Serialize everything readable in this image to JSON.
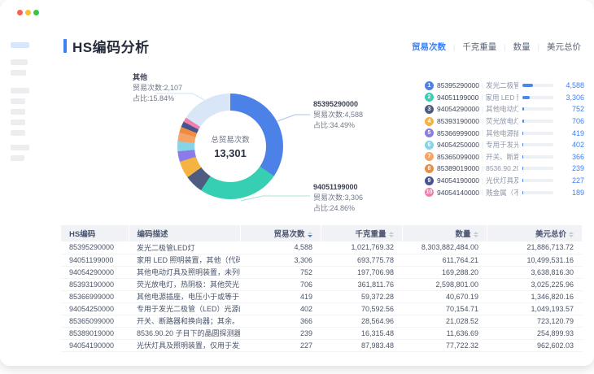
{
  "window": {
    "traffic_lights": [
      "#f95f57",
      "#fbbd2e",
      "#31c748"
    ]
  },
  "header": {
    "title": "HS编码分析",
    "tabs": [
      {
        "label": "贸易次数",
        "active": true
      },
      {
        "label": "千克重量",
        "active": false
      },
      {
        "label": "数量",
        "active": false
      },
      {
        "label": "美元总价",
        "active": false
      }
    ]
  },
  "chart": {
    "center_label": "总贸易次数",
    "center_value": "13,301",
    "callouts": [
      {
        "title": "其他",
        "lines": [
          "贸易次数:2,107",
          "占比:15.84%"
        ]
      },
      {
        "title": "85395290000",
        "lines": [
          "贸易次数:4,588",
          "占比:34.49%"
        ]
      },
      {
        "title": "94051199000",
        "lines": [
          "贸易次数:3,306",
          "占比:24.86%"
        ]
      }
    ],
    "legend": [
      {
        "rank": 1,
        "code": "85395290000",
        "desc": "发光二极管...",
        "value": 4588,
        "value_label": "4,588",
        "color": "#4c82e8"
      },
      {
        "rank": 2,
        "code": "94051199000",
        "desc": "家用 LED 照...",
        "value": 3306,
        "value_label": "3,306",
        "color": "#36cfb4"
      },
      {
        "rank": 3,
        "code": "94054290000",
        "desc": "其他电动灯...",
        "value": 752,
        "value_label": "752",
        "color": "#4e5c80"
      },
      {
        "rank": 4,
        "code": "85393190000",
        "desc": "荧光放电灯...",
        "value": 706,
        "value_label": "706",
        "color": "#f5b341"
      },
      {
        "rank": 5,
        "code": "85366999000",
        "desc": "其他电源插...",
        "value": 419,
        "value_label": "419",
        "color": "#8b7be8"
      },
      {
        "rank": 6,
        "code": "94054250000",
        "desc": "专用于发光...",
        "value": 402,
        "value_label": "402",
        "color": "#85d4e8"
      },
      {
        "rank": 7,
        "code": "85365099000",
        "desc": "开关、断路...",
        "value": 366,
        "value_label": "366",
        "color": "#f5a468"
      },
      {
        "rank": 8,
        "code": "85389019000",
        "desc": "8536.90.20 ...",
        "value": 239,
        "value_label": "239",
        "color": "#ee8c3f"
      },
      {
        "rank": 9,
        "code": "94054190000",
        "desc": "光伏灯具及...",
        "value": 227,
        "value_label": "227",
        "color": "#47548e"
      },
      {
        "rank": 10,
        "code": "94054140000",
        "desc": "贱金属（不...",
        "value": 189,
        "value_label": "189",
        "color": "#f17fae"
      }
    ]
  },
  "chart_data": {
    "type": "pie",
    "donut": true,
    "title": "总贸易次数",
    "center": {
      "label": "总贸易次数",
      "value": 13301,
      "value_label": "13,301"
    },
    "labels": [
      "85395290000",
      "94051199000",
      "94054290000",
      "85393190000",
      "85366999000",
      "94054250000",
      "85365099000",
      "85389019000",
      "94054190000",
      "94054140000",
      "其他"
    ],
    "values": [
      4588,
      3306,
      752,
      706,
      419,
      402,
      366,
      239,
      227,
      189,
      2107
    ],
    "percents": [
      "34.49%",
      "24.86%",
      "5.65%",
      "5.31%",
      "3.15%",
      "3.02%",
      "2.75%",
      "1.80%",
      "1.71%",
      "1.42%",
      "15.84%"
    ],
    "colors": [
      "#4c82e8",
      "#36cfb4",
      "#4e5c80",
      "#f5b341",
      "#8b7be8",
      "#85d4e8",
      "#f5a468",
      "#ee8c3f",
      "#47548e",
      "#f17fae",
      "#d8e6f8"
    ],
    "legend_position": "right"
  },
  "table": {
    "headers": [
      {
        "label": "HS编码",
        "sortable": false,
        "align": "left"
      },
      {
        "label": "编码描述",
        "sortable": false,
        "align": "left"
      },
      {
        "label": "贸易次数",
        "sortable": true,
        "active": true,
        "align": "right"
      },
      {
        "label": "千克重量",
        "sortable": true,
        "align": "right"
      },
      {
        "label": "数量",
        "sortable": true,
        "align": "right"
      },
      {
        "label": "美元总价",
        "sortable": true,
        "align": "right"
      }
    ],
    "rows": [
      [
        "85395290000",
        "发光二极管LED灯",
        "4,588",
        "1,021,769.32",
        "8,303,882,484.00",
        "21,886,713.72"
      ],
      [
        "94051199000",
        "家用 LED 照明装置，其他（代码：9405.1...",
        "3,306",
        "693,775.78",
        "611,764.21",
        "10,499,531.16"
      ],
      [
        "94054290000",
        "其他电动灯具及照明装置，未列明，设计...",
        "752",
        "197,706.98",
        "169,288.20",
        "3,638,816.30"
      ],
      [
        "85393190000",
        "荧光放电灯，热阴极：其他荧光，热阴极",
        "706",
        "361,811.76",
        "2,598,801.00",
        "3,025,225.96"
      ],
      [
        "85366999000",
        "其他电源插座，电压小于或等于 1000 伏：...",
        "419",
        "59,372.28",
        "40,670.19",
        "1,346,820.16"
      ],
      [
        "94054250000",
        "专用于发光二极管（LED）光源的灯具及...",
        "402",
        "70,592.56",
        "70,154.71",
        "1,049,193.57"
      ],
      [
        "85365099000",
        "开关、断路器和换向器；其余。",
        "366",
        "28,564.96",
        "21,028.52",
        "723,120.79"
      ],
      [
        "85389019000",
        "8536.90.20 子目下的晶圆探测器零件，其...",
        "239",
        "16,315.48",
        "11,636.69",
        "254,899.93"
      ],
      [
        "94054190000",
        "光伏灯具及照明装置，仅用于发光二极管...",
        "227",
        "87,983.48",
        "77,722.32",
        "962,602.03"
      ]
    ]
  },
  "colors": {
    "accent": "#3d7ff5"
  }
}
